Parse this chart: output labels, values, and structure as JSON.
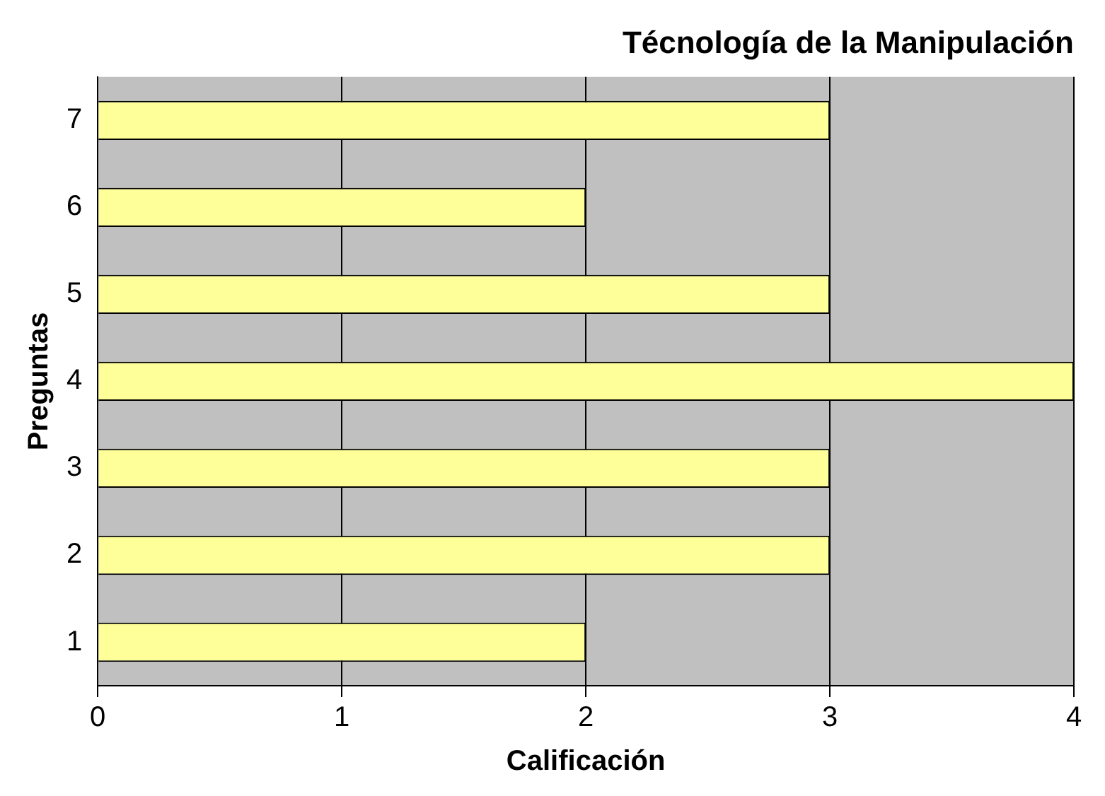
{
  "chart_data": {
    "type": "bar",
    "orientation": "horizontal",
    "title": "Técnología de la Manipulación",
    "xlabel": "Calificación",
    "ylabel": "Preguntas",
    "categories": [
      "7",
      "6",
      "5",
      "4",
      "3",
      "2",
      "1"
    ],
    "values": [
      3,
      2,
      3,
      4,
      3,
      3,
      2
    ],
    "color": "#ffff99",
    "xlim": [
      0,
      4
    ],
    "xticks": [
      0,
      1,
      2,
      3,
      4
    ],
    "grid": "x"
  }
}
